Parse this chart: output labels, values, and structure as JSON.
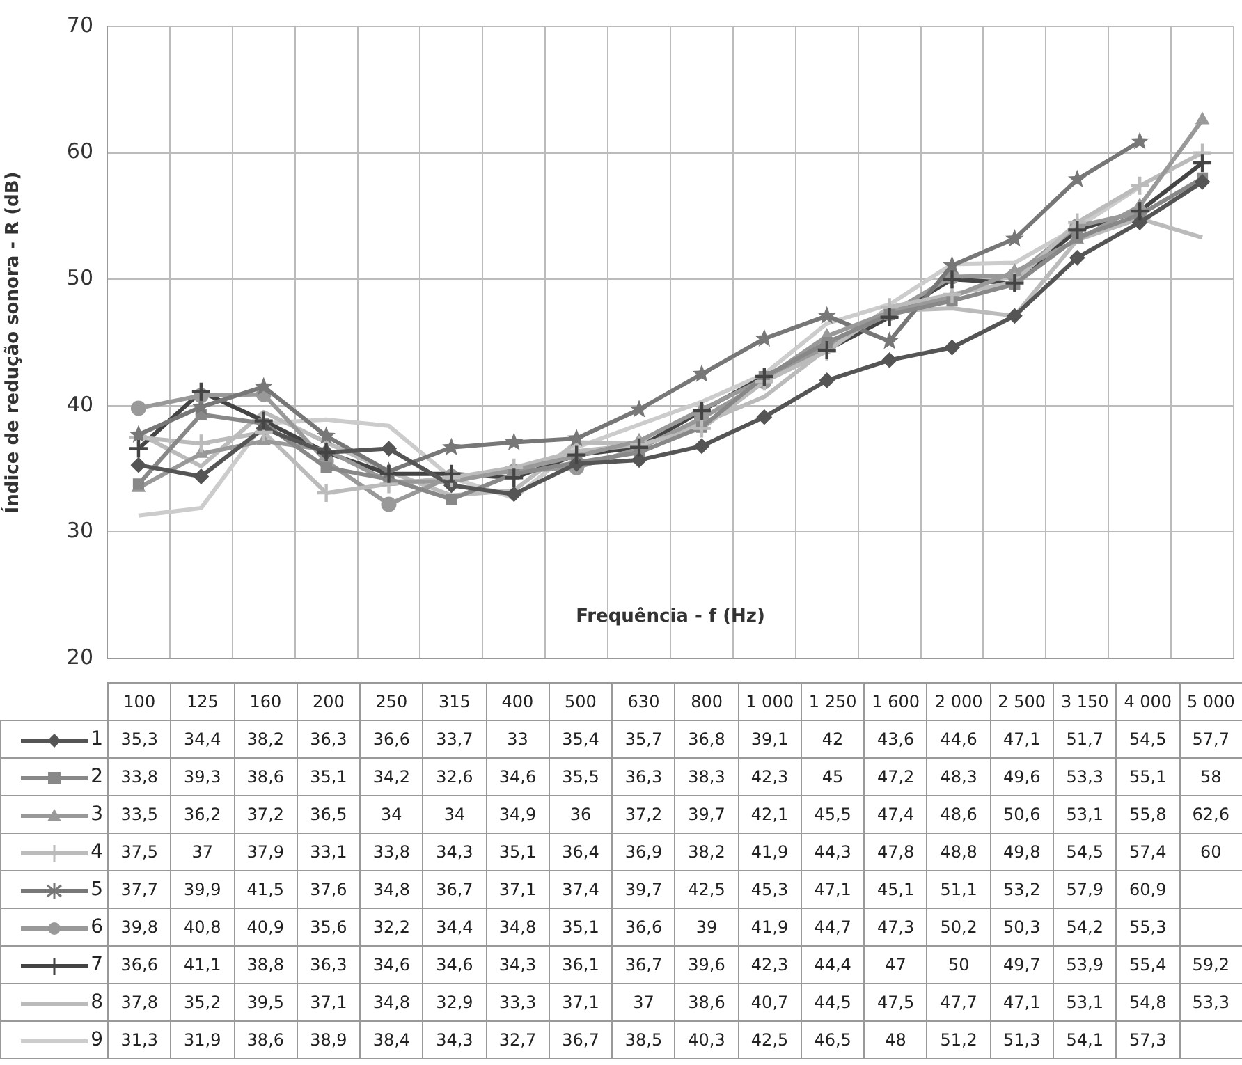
{
  "chart_data": {
    "type": "line",
    "xlabel": "Frequência - f (Hz)",
    "ylabel": "Índice de redução sonora - R (dB)",
    "categories": [
      "100",
      "125",
      "160",
      "200",
      "250",
      "315",
      "400",
      "500",
      "630",
      "800",
      "1 000",
      "1 250",
      "1 600",
      "2 000",
      "2 500",
      "3 150",
      "4 000",
      "5 000"
    ],
    "ylim": [
      20,
      70
    ],
    "yticks": [
      20,
      30,
      40,
      50,
      60,
      70
    ],
    "grid": true,
    "legend": "bottom",
    "series": [
      {
        "name": "1",
        "color": "#555555",
        "marker": "diamond",
        "values": [
          35.3,
          34.4,
          38.2,
          36.3,
          36.6,
          33.7,
          33,
          35.4,
          35.7,
          36.8,
          39.1,
          42,
          43.6,
          44.6,
          47.1,
          51.7,
          54.5,
          57.7
        ],
        "value_labels": [
          "35,3",
          "34,4",
          "38,2",
          "36,3",
          "36,6",
          "33,7",
          "33",
          "35,4",
          "35,7",
          "36,8",
          "39,1",
          "42",
          "43,6",
          "44,6",
          "47,1",
          "51,7",
          "54,5",
          "57,7"
        ]
      },
      {
        "name": "2",
        "color": "#888888",
        "marker": "square",
        "values": [
          33.8,
          39.3,
          38.6,
          35.1,
          34.2,
          32.6,
          34.6,
          35.5,
          36.3,
          38.3,
          42.3,
          45,
          47.2,
          48.3,
          49.6,
          53.3,
          55.1,
          58
        ],
        "value_labels": [
          "33,8",
          "39,3",
          "38,6",
          "35,1",
          "34,2",
          "32,6",
          "34,6",
          "35,5",
          "36,3",
          "38,3",
          "42,3",
          "45",
          "47,2",
          "48,3",
          "49,6",
          "53,3",
          "55,1",
          "58"
        ]
      },
      {
        "name": "3",
        "color": "#999999",
        "marker": "triangle",
        "values": [
          33.5,
          36.2,
          37.2,
          36.5,
          34,
          34,
          34.9,
          36,
          37.2,
          39.7,
          42.1,
          45.5,
          47.4,
          48.6,
          50.6,
          53.1,
          55.8,
          62.6
        ],
        "value_labels": [
          "33,5",
          "36,2",
          "37,2",
          "36,5",
          "34",
          "34",
          "34,9",
          "36",
          "37,2",
          "39,7",
          "42,1",
          "45,5",
          "47,4",
          "48,6",
          "50,6",
          "53,1",
          "55,8",
          "62,6"
        ]
      },
      {
        "name": "4",
        "color": "#bbbbbb",
        "marker": "cross",
        "values": [
          37.5,
          37,
          37.9,
          33.1,
          33.8,
          34.3,
          35.1,
          36.4,
          36.9,
          38.2,
          41.9,
          44.3,
          47.8,
          48.8,
          49.8,
          54.5,
          57.4,
          60
        ],
        "value_labels": [
          "37,5",
          "37",
          "37,9",
          "33,1",
          "33,8",
          "34,3",
          "35,1",
          "36,4",
          "36,9",
          "38,2",
          "41,9",
          "44,3",
          "47,8",
          "48,8",
          "49,8",
          "54,5",
          "57,4",
          "60"
        ]
      },
      {
        "name": "5",
        "color": "#777777",
        "marker": "star",
        "values": [
          37.7,
          39.9,
          41.5,
          37.6,
          34.8,
          36.7,
          37.1,
          37.4,
          39.7,
          42.5,
          45.3,
          47.1,
          45.1,
          51.1,
          53.2,
          57.9,
          60.9,
          null
        ],
        "value_labels": [
          "37,7",
          "39,9",
          "41,5",
          "37,6",
          "34,8",
          "36,7",
          "37,1",
          "37,4",
          "39,7",
          "42,5",
          "45,3",
          "47,1",
          "45,1",
          "51,1",
          "53,2",
          "57,9",
          "60,9",
          null
        ]
      },
      {
        "name": "6",
        "color": "#999999",
        "marker": "circle",
        "values": [
          39.8,
          40.8,
          40.9,
          35.6,
          32.2,
          34.4,
          34.8,
          35.1,
          36.6,
          39,
          41.9,
          44.7,
          47.3,
          50.2,
          50.3,
          54.2,
          55.3,
          null
        ],
        "value_labels": [
          "39,8",
          "40,8",
          "40,9",
          "35,6",
          "32,2",
          "34,4",
          "34,8",
          "35,1",
          "36,6",
          "39",
          "41,9",
          "44,7",
          "47,3",
          "50,2",
          "50,3",
          "54,2",
          "55,3",
          null
        ]
      },
      {
        "name": "7",
        "color": "#444444",
        "marker": "cross",
        "values": [
          36.6,
          41.1,
          38.8,
          36.3,
          34.6,
          34.6,
          34.3,
          36.1,
          36.7,
          39.6,
          42.3,
          44.4,
          47,
          50,
          49.7,
          53.9,
          55.4,
          59.2
        ],
        "value_labels": [
          "36,6",
          "41,1",
          "38,8",
          "36,3",
          "34,6",
          "34,6",
          "34,3",
          "36,1",
          "36,7",
          "39,6",
          "42,3",
          "44,4",
          "47",
          "50",
          "49,7",
          "53,9",
          "55,4",
          "59,2"
        ]
      },
      {
        "name": "8",
        "color": "#bbbbbb",
        "marker": "none",
        "values": [
          37.8,
          35.2,
          39.5,
          37.1,
          34.8,
          32.9,
          33.3,
          37.1,
          37,
          38.6,
          40.7,
          44.5,
          47.5,
          47.7,
          47.1,
          53.1,
          54.8,
          53.3
        ],
        "value_labels": [
          "37,8",
          "35,2",
          "39,5",
          "37,1",
          "34,8",
          "32,9",
          "33,3",
          "37,1",
          "37",
          "38,6",
          "40,7",
          "44,5",
          "47,5",
          "47,7",
          "47,1",
          "53,1",
          "54,8",
          "53,3"
        ]
      },
      {
        "name": "9",
        "color": "#cccccc",
        "marker": "none",
        "values": [
          31.3,
          31.9,
          38.6,
          38.9,
          38.4,
          34.3,
          32.7,
          36.7,
          38.5,
          40.3,
          42.5,
          46.5,
          48,
          51.2,
          51.3,
          54.1,
          57.3,
          null
        ],
        "value_labels": [
          "31,3",
          "31,9",
          "38,6",
          "38,9",
          "38,4",
          "34,3",
          "32,7",
          "36,7",
          "38,5",
          "40,3",
          "42,5",
          "46,5",
          "48",
          "51,2",
          "51,3",
          "54,1",
          "57,3",
          null
        ]
      }
    ]
  }
}
